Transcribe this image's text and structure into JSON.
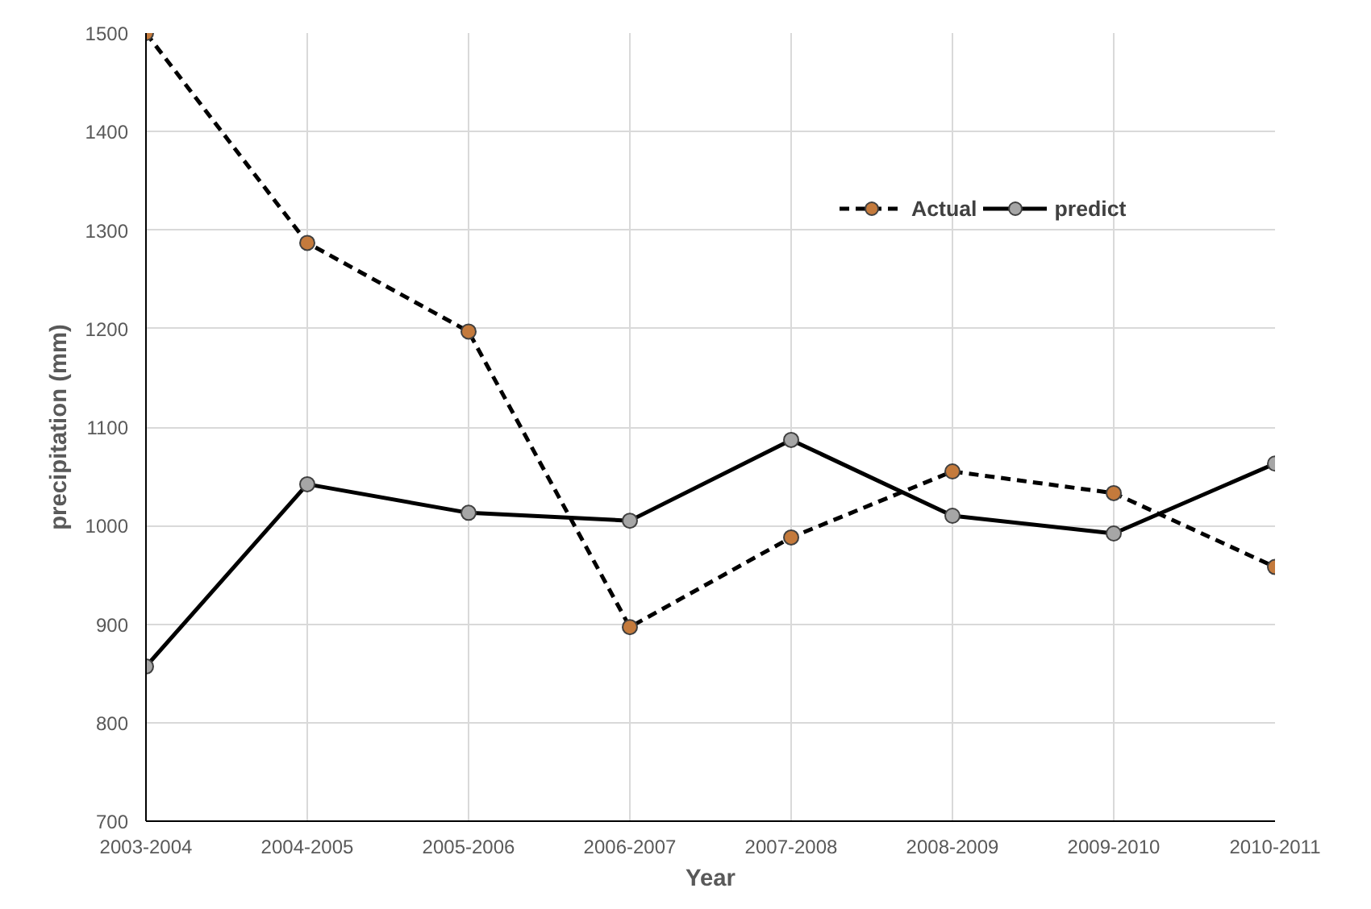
{
  "chart_data": {
    "type": "line",
    "xlabel": "Year",
    "ylabel": "precipitation (mm)",
    "categories": [
      "2003-2004",
      "2004-2005",
      "2005-2006",
      "2006-2007",
      "2007-2008",
      "2008-2009",
      "2009-2010",
      "2010-2011"
    ],
    "series": [
      {
        "name": "Actual",
        "color": "#c47a3c",
        "line_style": "dashed",
        "values": [
          1500,
          1287,
          1197,
          897,
          988,
          1055,
          1033,
          958
        ]
      },
      {
        "name": "predict",
        "color": "#a6a6a6",
        "line_style": "solid",
        "values": [
          857,
          1042,
          1013,
          1005,
          1087,
          1010,
          992,
          1063
        ]
      }
    ],
    "ylim": [
      700,
      1500
    ],
    "yticks": [
      700,
      800,
      900,
      1000,
      1100,
      1200,
      1300,
      1400,
      1500
    ],
    "grid": true,
    "legend": "top right",
    "marker": "circle"
  }
}
